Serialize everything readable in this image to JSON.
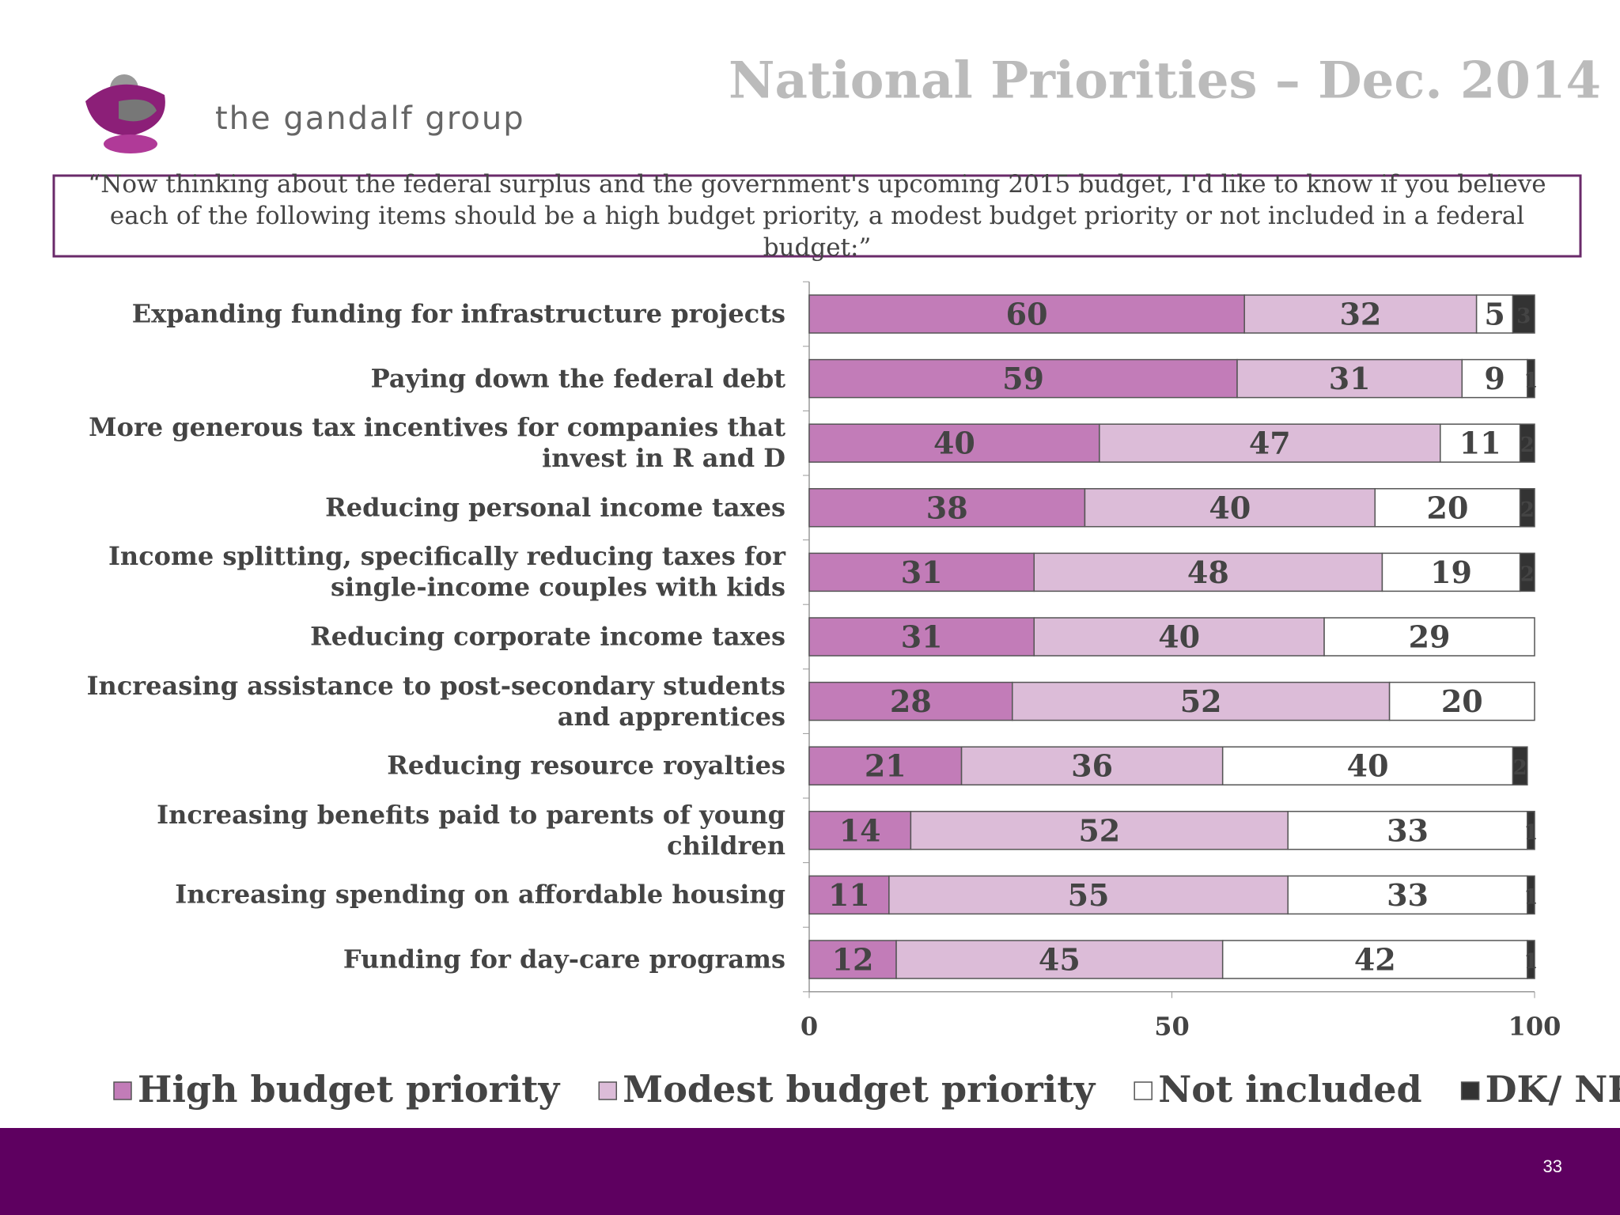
{
  "logo_text": "the gandalf group",
  "question": "“Now thinking about the federal surplus and the government's upcoming 2015 budget, I'd like to know if you believe each of the following items should be a high budget priority, a modest budget priority or not included in a federal budget:”",
  "page_number": "33",
  "chart_data": {
    "type": "stacked-bar",
    "orientation": "horizontal",
    "title": "National Priorities – Dec. 2014",
    "categories": [
      "Expanding funding for infrastructure projects",
      "Paying down the federal debt",
      "More generous tax incentives for companies that invest in R and D",
      "Reducing personal income taxes",
      "Income splitting, specifically reducing taxes for single-income couples with kids",
      "Reducing corporate income taxes",
      "Increasing assistance to post-secondary students and apprentices",
      "Reducing resource royalties",
      "Increasing benefits paid to parents of young children",
      "Increasing spending on affordable housing",
      "Funding for day-care programs"
    ],
    "series": [
      {
        "name": "High budget priority",
        "color": "#c27cb8",
        "values": [
          60,
          59,
          40,
          38,
          31,
          31,
          28,
          21,
          14,
          11,
          12
        ]
      },
      {
        "name": "Modest budget priority",
        "color": "#dcbcd8",
        "values": [
          32,
          31,
          47,
          40,
          48,
          40,
          52,
          36,
          52,
          55,
          45
        ]
      },
      {
        "name": "Not included",
        "color": "#ffffff",
        "values": [
          5,
          9,
          11,
          20,
          19,
          29,
          20,
          40,
          33,
          33,
          42
        ]
      },
      {
        "name": "DK/ NR",
        "color": "#333333",
        "values": [
          3,
          1,
          2,
          2,
          2,
          null,
          null,
          2,
          1,
          1,
          1
        ]
      }
    ],
    "xlim": [
      0,
      100
    ],
    "xticks": [
      0,
      50,
      100
    ],
    "legend": "bottom"
  }
}
